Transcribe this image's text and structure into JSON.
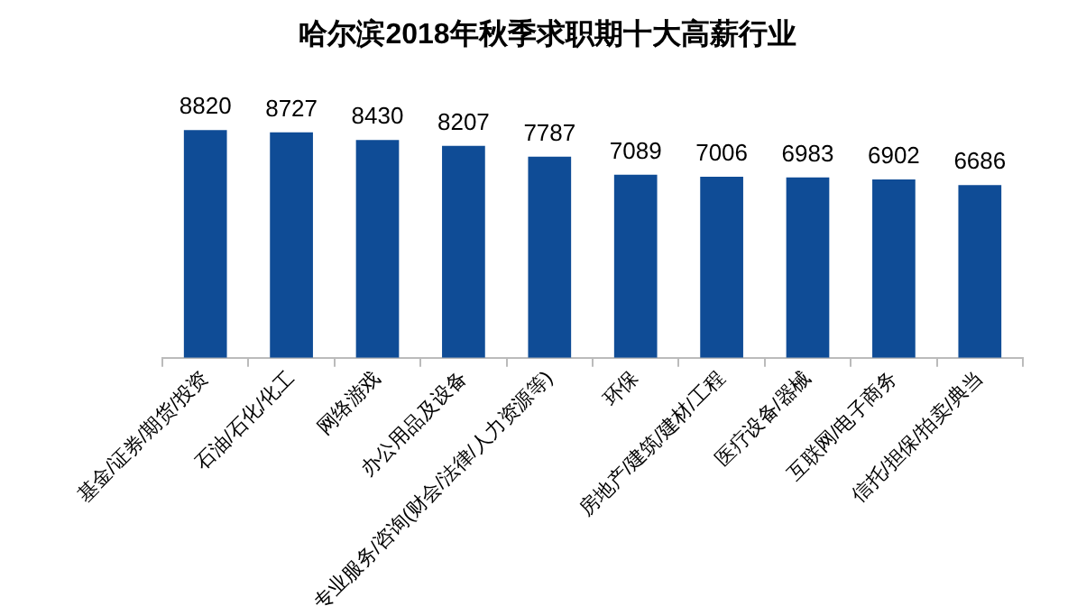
{
  "chart_data": {
    "type": "bar",
    "title": "哈尔滨2018年秋季求职期十大高薪行业",
    "categories": [
      "基金/证券/期货/投资",
      "石油/石化/化工",
      "网络游戏",
      "办公用品及设备",
      "专业服务/咨询(财会/法律/人力资源等)",
      "环保",
      "房地产/建筑/建材/工程",
      "医疗设备/器械",
      "互联网/电子商务",
      "信托/担保/拍卖/典当"
    ],
    "values": [
      8820,
      8727,
      8430,
      8207,
      7787,
      7089,
      7006,
      6983,
      6902,
      6686
    ],
    "color": "#0f4c96",
    "data_labels": true,
    "grid": false,
    "legend": false,
    "tick_labels": "x"
  }
}
